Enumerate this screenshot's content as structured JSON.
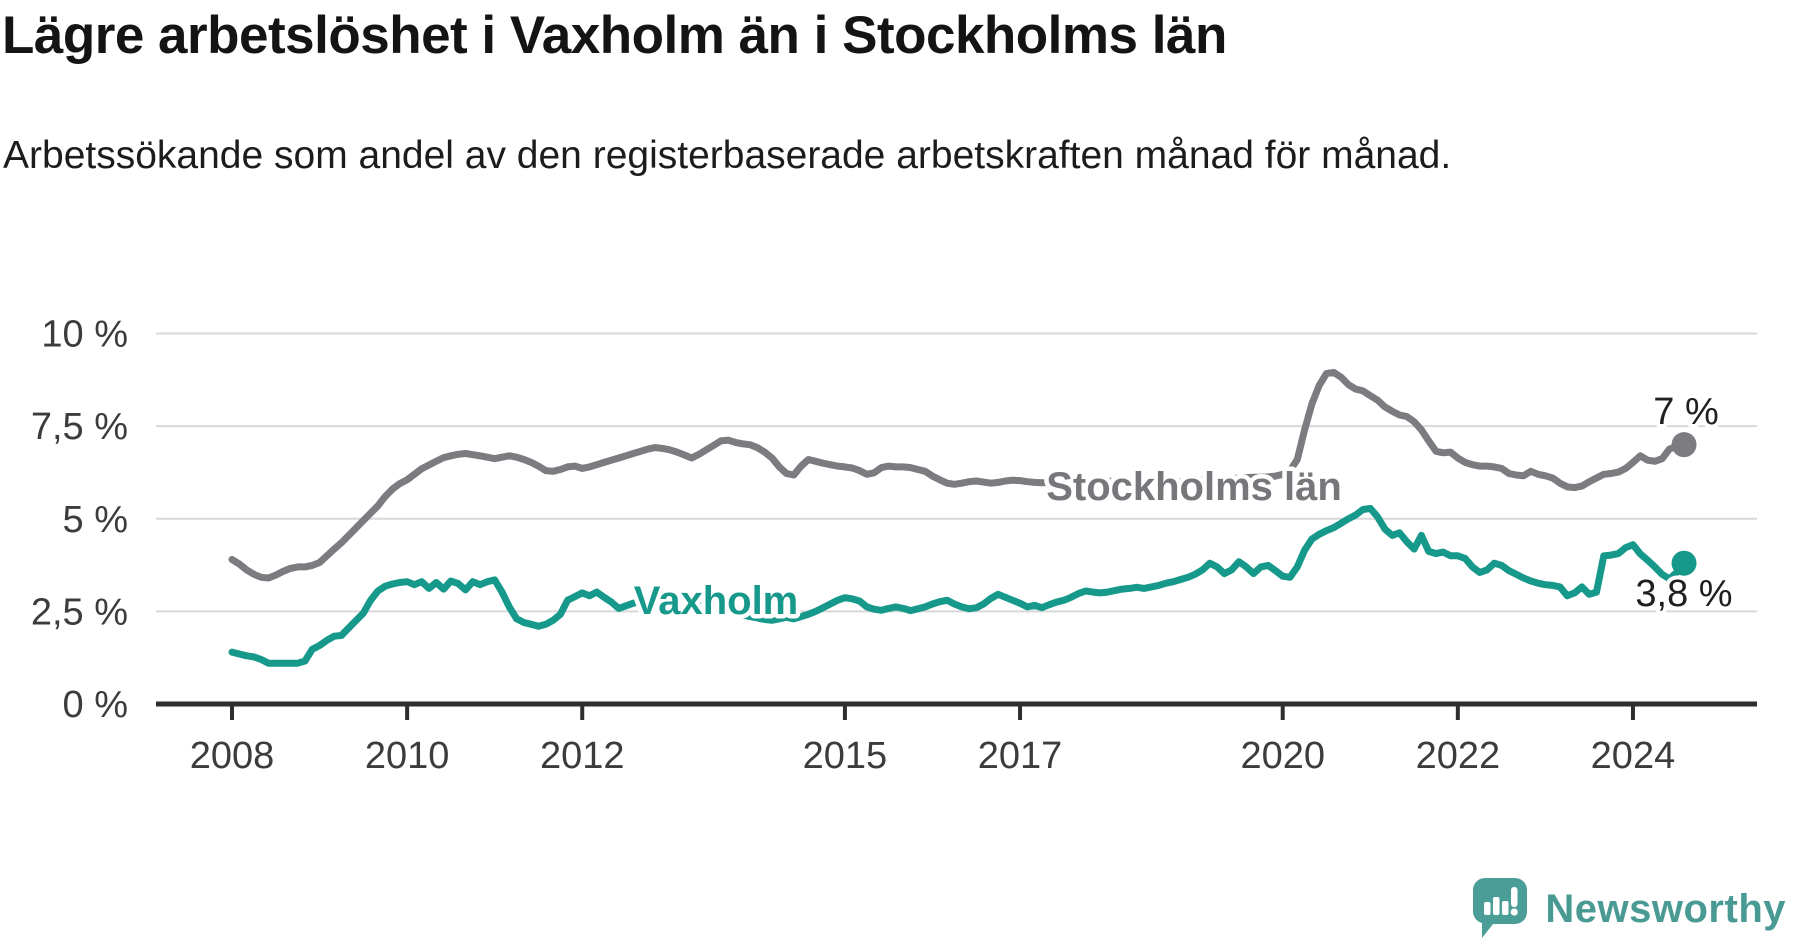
{
  "header": {
    "title": "Lägre arbetslöshet i Vaxholm än i Stockholms län",
    "subtitle": "Arbetssökande som andel av den registerbaserade arbetskraften månad för månad."
  },
  "chart_data": {
    "type": "line",
    "unit": "%",
    "x_start": {
      "year": 2008,
      "month": 1
    },
    "x_step_months": 1,
    "ylim": [
      0,
      10
    ],
    "grid": true,
    "legend_position": "inline-labels",
    "y_ticks": [
      {
        "value": 0,
        "label": "0 %"
      },
      {
        "value": 2.5,
        "label": "2,5 %"
      },
      {
        "value": 5,
        "label": "5 %"
      },
      {
        "value": 7.5,
        "label": "7,5 %"
      },
      {
        "value": 10,
        "label": "10 %"
      }
    ],
    "x_ticks": [
      {
        "year": 2008,
        "label": "2008"
      },
      {
        "year": 2010,
        "label": "2010"
      },
      {
        "year": 2012,
        "label": "2012"
      },
      {
        "year": 2015,
        "label": "2015"
      },
      {
        "year": 2017,
        "label": "2017"
      },
      {
        "year": 2020,
        "label": "2020"
      },
      {
        "year": 2022,
        "label": "2022"
      },
      {
        "year": 2024,
        "label": "2024"
      }
    ],
    "series": [
      {
        "name": "Stockholms län",
        "color": "#7b7b80",
        "end_label": "7 %",
        "end_value": 7.0,
        "values": [
          3.9,
          3.78,
          3.62,
          3.5,
          3.42,
          3.4,
          3.48,
          3.58,
          3.66,
          3.7,
          3.7,
          3.74,
          3.82,
          4.0,
          4.18,
          4.35,
          4.55,
          4.75,
          4.95,
          5.15,
          5.35,
          5.6,
          5.8,
          5.95,
          6.05,
          6.2,
          6.35,
          6.45,
          6.55,
          6.65,
          6.7,
          6.74,
          6.76,
          6.73,
          6.7,
          6.66,
          6.62,
          6.66,
          6.7,
          6.66,
          6.6,
          6.52,
          6.42,
          6.3,
          6.28,
          6.33,
          6.4,
          6.42,
          6.36,
          6.4,
          6.46,
          6.52,
          6.58,
          6.64,
          6.7,
          6.76,
          6.82,
          6.88,
          6.92,
          6.9,
          6.86,
          6.8,
          6.72,
          6.64,
          6.74,
          6.86,
          6.98,
          7.1,
          7.12,
          7.06,
          7.02,
          7.0,
          6.92,
          6.8,
          6.64,
          6.4,
          6.22,
          6.18,
          6.42,
          6.6,
          6.55,
          6.5,
          6.46,
          6.42,
          6.4,
          6.37,
          6.3,
          6.2,
          6.24,
          6.38,
          6.42,
          6.4,
          6.4,
          6.38,
          6.33,
          6.28,
          6.15,
          6.05,
          5.96,
          5.93,
          5.96,
          6.0,
          6.02,
          5.99,
          5.96,
          5.98,
          6.02,
          6.04,
          6.03,
          6.0,
          5.98,
          5.97,
          5.98,
          6.0,
          6.01,
          6.0,
          5.99,
          6.0,
          6.02,
          6.03,
          6.02,
          6.0,
          5.97,
          5.95,
          5.96,
          5.98,
          6.0,
          6.01,
          6.0,
          5.99,
          6.0,
          6.02,
          6.03,
          6.04,
          6.05,
          6.06,
          6.07,
          6.08,
          6.1,
          6.11,
          6.12,
          6.12,
          6.13,
          6.15,
          6.2,
          6.3,
          6.6,
          7.4,
          8.1,
          8.6,
          8.92,
          8.95,
          8.82,
          8.62,
          8.5,
          8.45,
          8.32,
          8.2,
          8.02,
          7.9,
          7.8,
          7.76,
          7.62,
          7.4,
          7.1,
          6.82,
          6.78,
          6.8,
          6.64,
          6.52,
          6.46,
          6.42,
          6.42,
          6.4,
          6.36,
          6.22,
          6.18,
          6.16,
          6.28,
          6.2,
          6.16,
          6.1,
          5.96,
          5.86,
          5.84,
          5.88,
          6.0,
          6.1,
          6.2,
          6.22,
          6.26,
          6.36,
          6.52,
          6.7,
          6.58,
          6.55,
          6.62,
          6.88,
          6.96,
          7.0
        ]
      },
      {
        "name": "Vaxholm",
        "color": "#16998b",
        "end_label": "3,8 %",
        "end_value": 3.8,
        "values": [
          1.4,
          1.35,
          1.3,
          1.27,
          1.2,
          1.1,
          1.1,
          1.1,
          1.1,
          1.1,
          1.16,
          1.48,
          1.58,
          1.72,
          1.83,
          1.85,
          2.05,
          2.25,
          2.45,
          2.8,
          3.05,
          3.18,
          3.24,
          3.28,
          3.3,
          3.22,
          3.3,
          3.12,
          3.28,
          3.1,
          3.32,
          3.25,
          3.08,
          3.3,
          3.22,
          3.3,
          3.35,
          3.02,
          2.62,
          2.3,
          2.2,
          2.15,
          2.1,
          2.15,
          2.26,
          2.42,
          2.8,
          2.9,
          3.0,
          2.92,
          3.02,
          2.88,
          2.75,
          2.58,
          2.65,
          2.72,
          2.76,
          2.72,
          2.66,
          2.7,
          2.76,
          2.8,
          2.84,
          2.78,
          2.72,
          2.66,
          2.6,
          2.55,
          2.5,
          2.45,
          2.4,
          2.36,
          2.32,
          2.28,
          2.26,
          2.3,
          2.34,
          2.3,
          2.36,
          2.42,
          2.5,
          2.6,
          2.7,
          2.8,
          2.87,
          2.84,
          2.78,
          2.62,
          2.56,
          2.53,
          2.58,
          2.62,
          2.58,
          2.52,
          2.57,
          2.62,
          2.7,
          2.76,
          2.8,
          2.7,
          2.62,
          2.57,
          2.6,
          2.7,
          2.85,
          2.96,
          2.88,
          2.8,
          2.72,
          2.62,
          2.66,
          2.6,
          2.68,
          2.75,
          2.8,
          2.88,
          2.98,
          3.05,
          3.02,
          3.0,
          3.02,
          3.06,
          3.1,
          3.12,
          3.15,
          3.12,
          3.16,
          3.2,
          3.26,
          3.3,
          3.36,
          3.42,
          3.5,
          3.62,
          3.8,
          3.7,
          3.52,
          3.62,
          3.84,
          3.7,
          3.52,
          3.7,
          3.74,
          3.6,
          3.45,
          3.42,
          3.7,
          4.15,
          4.45,
          4.58,
          4.68,
          4.76,
          4.88,
          5.0,
          5.1,
          5.25,
          5.28,
          5.05,
          4.72,
          4.55,
          4.62,
          4.38,
          4.18,
          4.55,
          4.12,
          4.06,
          4.1,
          4.0,
          4.0,
          3.93,
          3.7,
          3.55,
          3.62,
          3.8,
          3.74,
          3.6,
          3.5,
          3.4,
          3.32,
          3.26,
          3.22,
          3.2,
          3.16,
          2.92,
          3.0,
          3.16,
          2.96,
          3.02,
          4.0,
          4.02,
          4.06,
          4.22,
          4.3,
          4.05,
          3.88,
          3.7,
          3.5,
          3.38,
          3.55,
          3.8
        ]
      }
    ],
    "style": {
      "grid_color": "#d8d8d8",
      "axis_color": "#2e2e2e",
      "tick_label_color": "#3c3c3c"
    }
  },
  "footer": {
    "brand": "Newsworthy",
    "brand_color": "#4a9a94",
    "logo_icon": "speech-bubble-bar-chart-exclamation-icon"
  }
}
